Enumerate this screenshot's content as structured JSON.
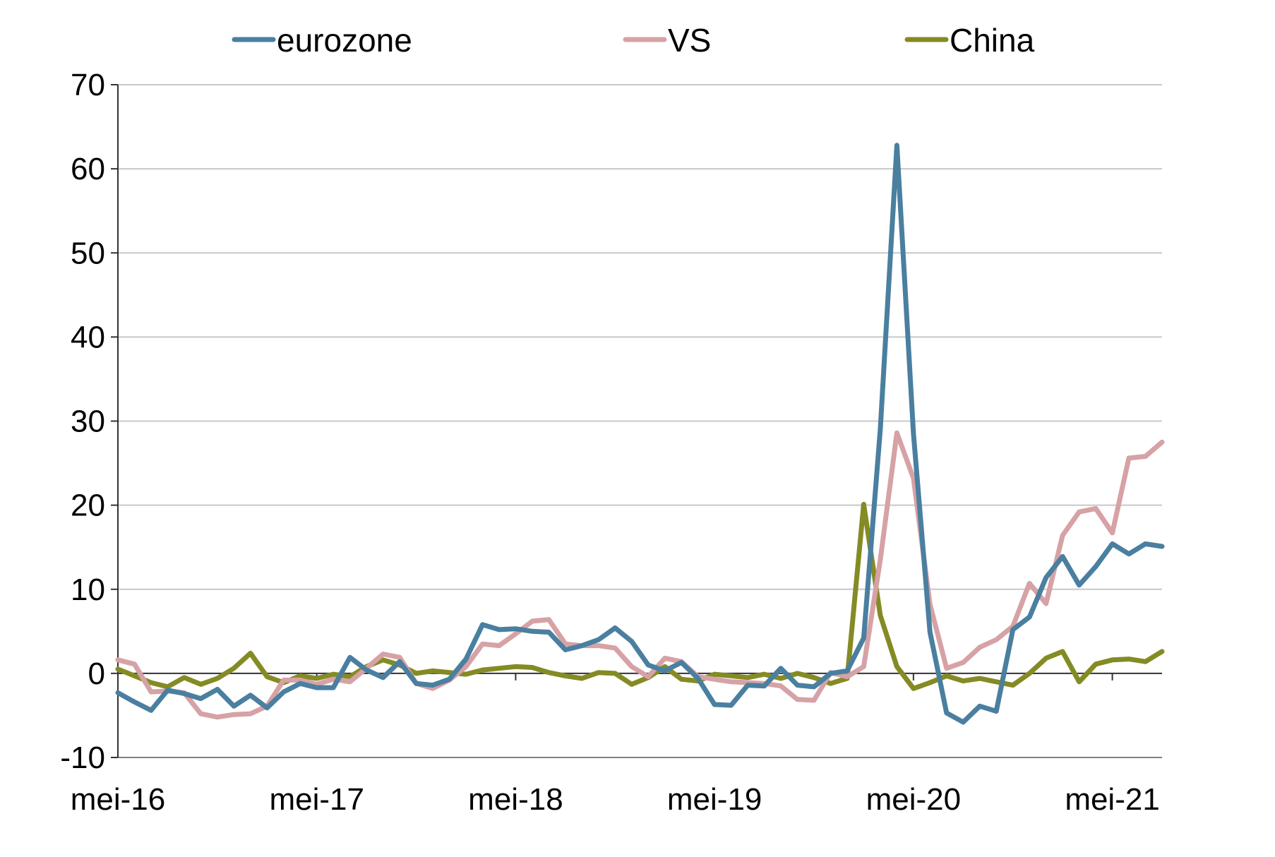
{
  "chart_data": {
    "type": "line",
    "title": "",
    "xlabel": "",
    "ylabel": "",
    "ylim": [
      -10,
      70
    ],
    "yticks": [
      -10,
      0,
      10,
      20,
      30,
      40,
      50,
      60,
      70
    ],
    "ytick_labels": [
      "-10",
      "0",
      "10",
      "20",
      "30",
      "40",
      "50",
      "60",
      "70"
    ],
    "x_start": "2016-05",
    "x_end": "2021-08",
    "xtick_labels": [
      {
        "label": "mei-16",
        "month": "2016-05"
      },
      {
        "label": "mei-17",
        "month": "2017-05"
      },
      {
        "label": "mei-18",
        "month": "2018-05"
      },
      {
        "label": "mei-19",
        "month": "2019-05"
      },
      {
        "label": "mei-20",
        "month": "2020-05"
      },
      {
        "label": "mei-21",
        "month": "2021-05"
      }
    ],
    "grid": true,
    "legend_position": "top",
    "series": [
      {
        "name": "eurozone",
        "color": "#4A7FA0",
        "values": [
          -2.3,
          -3.4,
          -4.4,
          -2.0,
          -2.4,
          -3.0,
          -1.9,
          -3.9,
          -2.6,
          -4.1,
          -2.2,
          -1.2,
          -1.7,
          -1.7,
          1.9,
          0.4,
          -0.5,
          1.4,
          -1.2,
          -1.4,
          -0.7,
          1.7,
          5.8,
          5.2,
          5.3,
          5.0,
          4.9,
          2.8,
          3.3,
          4.0,
          5.4,
          3.8,
          1.0,
          0.3,
          1.3,
          -0.6,
          -3.7,
          -3.8,
          -1.4,
          -1.5,
          0.6,
          -1.4,
          -1.6,
          0.0,
          0.3,
          4.2,
          29.0,
          62.8,
          28.5,
          4.9,
          -4.7,
          -5.8,
          -3.9,
          -4.5,
          5.2,
          6.7,
          11.4,
          13.9,
          10.5,
          12.7,
          15.4,
          14.2,
          15.4,
          15.1
        ]
      },
      {
        "name": "VS",
        "color": "#D6A2A5",
        "values": [
          1.6,
          1.1,
          -2.2,
          -2.1,
          -2.3,
          -4.8,
          -5.2,
          -4.9,
          -4.8,
          -3.9,
          -0.8,
          -0.8,
          -1.3,
          -0.7,
          -1.0,
          0.6,
          2.3,
          1.9,
          -1.2,
          -1.8,
          -0.8,
          0.8,
          3.5,
          3.3,
          4.7,
          6.2,
          6.4,
          3.5,
          3.3,
          3.3,
          3.0,
          0.8,
          -0.4,
          1.8,
          1.4,
          -0.4,
          -0.7,
          -1.0,
          -1.1,
          -1.2,
          -1.5,
          -3.1,
          -3.2,
          0.1,
          -0.4,
          0.8,
          13.5,
          28.6,
          23.2,
          8.2,
          0.6,
          1.3,
          3.1,
          4.0,
          5.6,
          10.7,
          8.3,
          16.4,
          19.2,
          19.6,
          16.7,
          25.6,
          25.8,
          27.5
        ]
      },
      {
        "name": "China",
        "color": "#858B24",
        "values": [
          0.5,
          -0.3,
          -1.1,
          -1.6,
          -0.5,
          -1.3,
          -0.6,
          0.6,
          2.4,
          -0.4,
          -1.1,
          -0.3,
          -0.6,
          -0.1,
          -0.4,
          0.8,
          1.6,
          1.0,
          0.0,
          0.3,
          0.1,
          -0.1,
          0.4,
          0.6,
          0.8,
          0.7,
          0.1,
          -0.3,
          -0.6,
          0.1,
          0.0,
          -1.3,
          -0.5,
          0.8,
          -0.7,
          -0.9,
          -0.1,
          -0.3,
          -0.5,
          -0.1,
          -0.6,
          0.0,
          -0.5,
          -1.2,
          -0.6,
          20.1,
          6.9,
          0.8,
          -1.8,
          -1.1,
          -0.3,
          -0.9,
          -0.6,
          -1.0,
          -1.4,
          0.0,
          1.8,
          2.6,
          -1.0,
          1.1,
          1.6,
          1.7,
          1.4,
          2.6
        ]
      }
    ]
  }
}
